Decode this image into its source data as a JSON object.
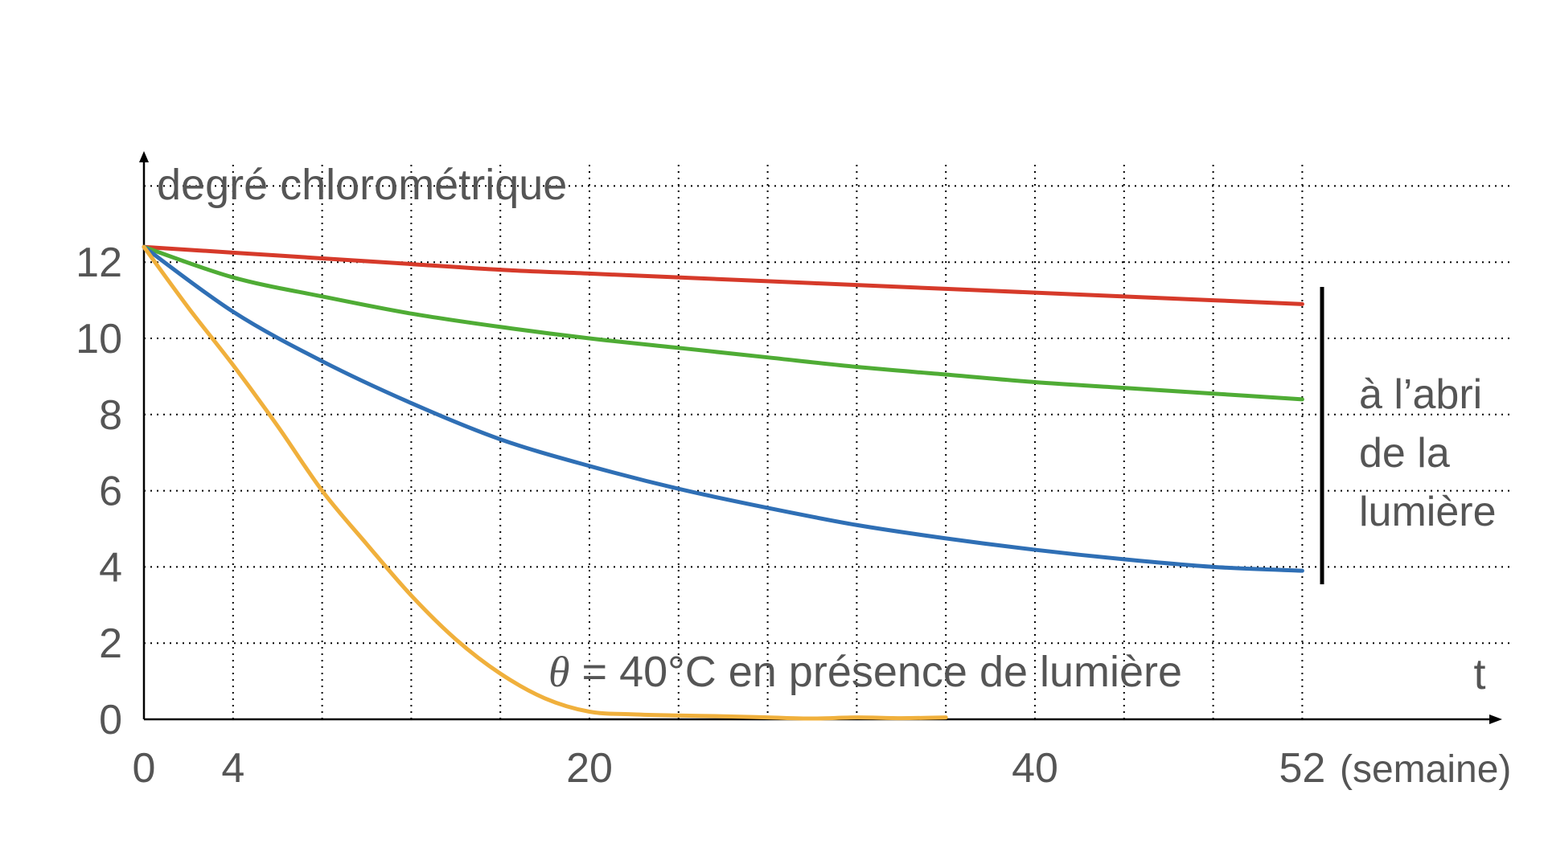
{
  "chart_data": {
    "type": "line",
    "ylabel": "degré chlorométrique",
    "xlabel": "t",
    "x_unit": "(semaine)",
    "xlim": [
      0,
      53
    ],
    "ylim": [
      0,
      14
    ],
    "x_ticks": [
      0,
      4,
      20,
      40,
      52
    ],
    "y_ticks": [
      0,
      2,
      4,
      6,
      8,
      10,
      12
    ],
    "x_grid": [
      0,
      4,
      8,
      12,
      16,
      20,
      24,
      28,
      32,
      36,
      40,
      44,
      48,
      52
    ],
    "y_grid": [
      2,
      4,
      6,
      8,
      10,
      12,
      14
    ],
    "grid": "dotted",
    "series": [
      {
        "color": "#d63a2a",
        "x": [
          0,
          4,
          8,
          12,
          16,
          20,
          24,
          28,
          32,
          36,
          40,
          44,
          48,
          52
        ],
        "y": [
          12.4,
          12.25,
          12.1,
          11.95,
          11.8,
          11.7,
          11.6,
          11.5,
          11.4,
          11.3,
          11.2,
          11.1,
          11.0,
          10.9
        ]
      },
      {
        "color": "#4fac35",
        "x": [
          0,
          4,
          8,
          12,
          16,
          20,
          24,
          28,
          32,
          36,
          40,
          44,
          48,
          52
        ],
        "y": [
          12.4,
          11.6,
          11.1,
          10.65,
          10.3,
          10.0,
          9.75,
          9.5,
          9.25,
          9.05,
          8.85,
          8.7,
          8.55,
          8.4
        ]
      },
      {
        "color": "#2f6fb5",
        "x": [
          0,
          4,
          8,
          12,
          16,
          20,
          24,
          28,
          32,
          36,
          40,
          44,
          48,
          52
        ],
        "y": [
          12.4,
          10.7,
          9.4,
          8.3,
          7.35,
          6.65,
          6.05,
          5.55,
          5.1,
          4.75,
          4.45,
          4.2,
          4.0,
          3.9
        ]
      },
      {
        "color": "#f0b03c",
        "x": [
          0,
          2,
          4,
          6,
          8,
          10,
          12,
          14,
          16,
          18,
          20,
          22,
          24,
          26,
          28,
          30,
          32,
          34,
          36
        ],
        "y": [
          12.4,
          10.8,
          9.3,
          7.7,
          6.0,
          4.6,
          3.25,
          2.1,
          1.2,
          0.55,
          0.2,
          0.13,
          0.1,
          0.08,
          0.05,
          0.02,
          0.05,
          0.03,
          0.05
        ]
      }
    ],
    "annotations": {
      "yellow_label": "θ = 40°C en présence de lumière",
      "bracket_label": [
        "à l’abri",
        "de la",
        "lumière"
      ]
    }
  }
}
